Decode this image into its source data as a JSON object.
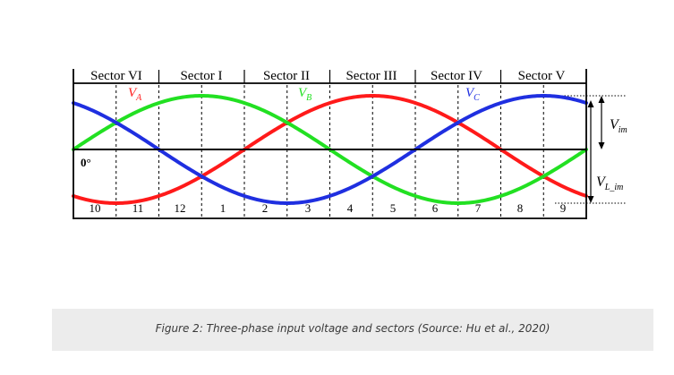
{
  "figure": {
    "sectors": [
      "Sector VI",
      "Sector I",
      "Sector II",
      "Sector III",
      "Sector IV",
      "Sector V"
    ],
    "phase_labels": [
      {
        "main": "V",
        "sub": "A",
        "color": "#ff1a1a"
      },
      {
        "main": "V",
        "sub": "B",
        "color": "#22e022"
      },
      {
        "main": "V",
        "sub": "C",
        "color": "#1f2fe0"
      }
    ],
    "angle_label": "0°",
    "sub_sectors": [
      "10",
      "11",
      "12",
      "1",
      "2",
      "3",
      "4",
      "5",
      "6",
      "7",
      "8",
      "9"
    ],
    "vim_label": {
      "main": "V",
      "sub": "im"
    },
    "vl_im_label": {
      "main": "V",
      "sub": "L_im"
    }
  },
  "caption": "Figure 2: Three-phase input voltage and sectors (Source: Hu et al., 2020)"
}
